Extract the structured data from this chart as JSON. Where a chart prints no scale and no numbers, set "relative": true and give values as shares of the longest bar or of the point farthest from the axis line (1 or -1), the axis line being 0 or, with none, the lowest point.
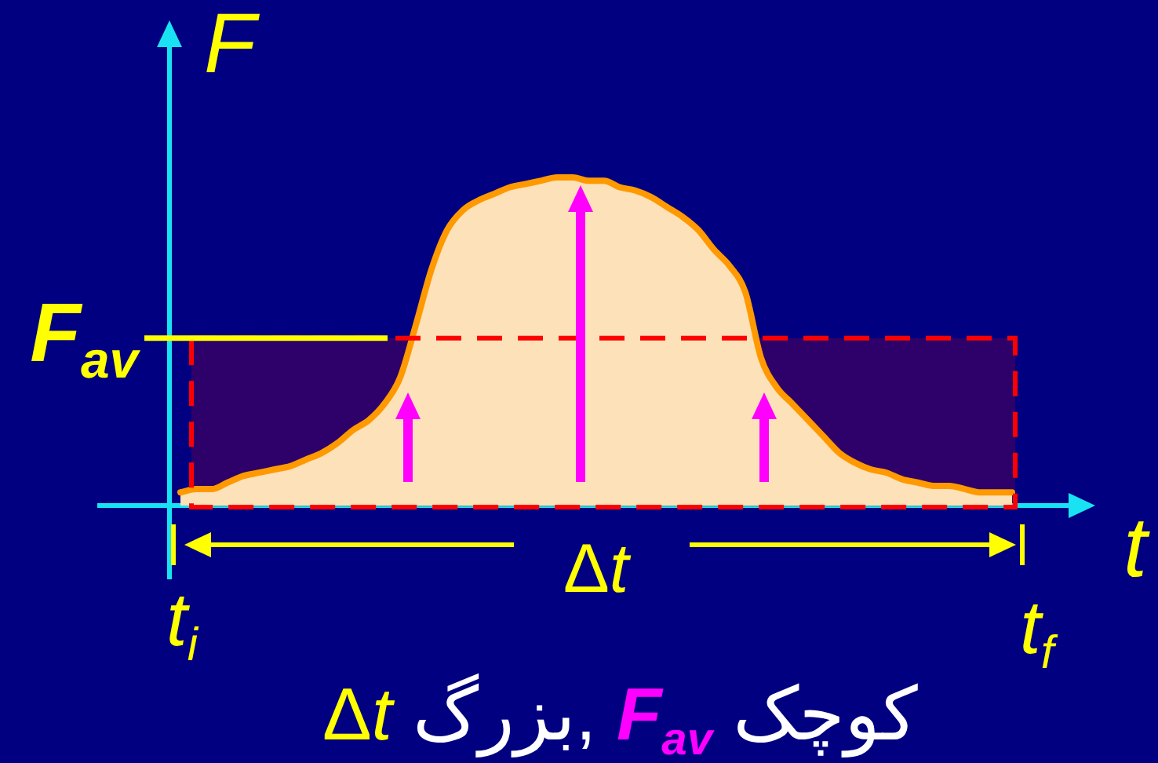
{
  "chart_data": {
    "type": "area",
    "relative": true,
    "xlabel": "t",
    "ylabel": "F",
    "categories": [
      null,
      null,
      null,
      null,
      null,
      null,
      null,
      null,
      null,
      null,
      null,
      null,
      null,
      null,
      null,
      null,
      null,
      null,
      null,
      null,
      null,
      null,
      null,
      null,
      null,
      null,
      null,
      null,
      null,
      null,
      null,
      null,
      null,
      null,
      null,
      null,
      null,
      null,
      null,
      null,
      null,
      null,
      null,
      null,
      null,
      null,
      null,
      null,
      null,
      null,
      null,
      null,
      null,
      null
    ],
    "values": [
      0.04,
      0.05,
      0.05,
      0.07,
      0.09,
      0.1,
      0.11,
      0.12,
      0.14,
      0.16,
      0.19,
      0.23,
      0.26,
      0.31,
      0.39,
      0.55,
      0.72,
      0.84,
      0.9,
      0.93,
      0.95,
      0.97,
      0.98,
      0.99,
      1.0,
      1.0,
      0.99,
      0.99,
      0.97,
      0.96,
      0.94,
      0.91,
      0.88,
      0.84,
      0.78,
      0.73,
      0.65,
      0.45,
      0.36,
      0.31,
      0.26,
      0.21,
      0.16,
      0.13,
      0.11,
      0.1,
      0.08,
      0.07,
      0.06,
      0.06,
      0.05,
      0.04,
      0.04,
      0.04
    ],
    "color": "#fde1b8",
    "ref_lines": [
      {
        "axis": "y",
        "value": 0.51,
        "label": "F$_{av}$",
        "color": "#ffff00"
      }
    ],
    "bands": [
      {
        "axis": "y",
        "from": 0,
        "to": 0.51,
        "color": "#ff0000"
      }
    ],
    "annotations": [
      "t$_{i}$",
      "t$_{f}$",
      "Δt",
      "Δt بزرگ, F$_{av}$ کوچک"
    ]
  }
}
